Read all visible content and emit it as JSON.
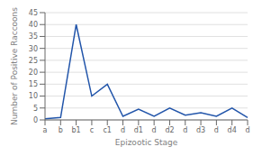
{
  "chart_data": {
    "type": "line",
    "categories": [
      "a",
      "b",
      "b1",
      "c",
      "c1",
      "d",
      "d1",
      "d",
      "d2",
      "d",
      "d3",
      "d",
      "d4",
      "d"
    ],
    "values": [
      0.5,
      1,
      40,
      10,
      15,
      1.5,
      4.5,
      1.5,
      5,
      2,
      3,
      1.5,
      5,
      1
    ],
    "color": "#2255aa",
    "xlabel": "Epizootic Stage",
    "ylabel": "Number of Positive Raccoons",
    "ylim": [
      0,
      45
    ],
    "yticks": [
      0,
      5,
      10,
      15,
      20,
      25,
      30,
      35,
      40,
      45
    ],
    "grid": true
  }
}
